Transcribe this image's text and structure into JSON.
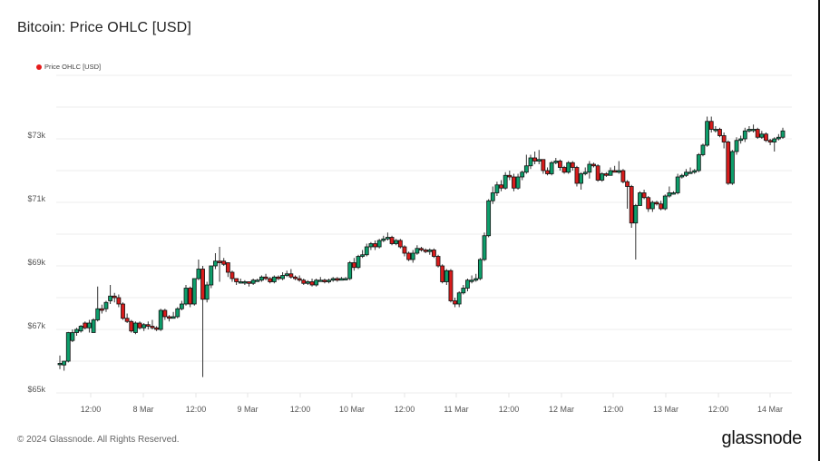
{
  "header": {
    "title": "Bitcoin: Price OHLC [USD]"
  },
  "legend": {
    "label": "Price OHLC [USD]",
    "color": "#e51b1b"
  },
  "footer": {
    "copyright": "© 2024 Glassnode. All Rights Reserved.",
    "logo": "glassnode"
  },
  "colors": {
    "up": "#0d9e6b",
    "down": "#d91c1c",
    "grid": "#eeeeee",
    "outline": "#111111"
  },
  "chart_data": {
    "type": "candlestick",
    "title": "Bitcoin: Price OHLC [USD]",
    "xlabel": "",
    "ylabel": "",
    "ylim": [
      65000,
      73800
    ],
    "grid": true,
    "legend_position": "top-left",
    "y_ticks": [
      "$65k",
      "$67k",
      "$69k",
      "$71k",
      "$73k"
    ],
    "y_tick_values": [
      65000,
      67000,
      69000,
      71000,
      73000
    ],
    "x_ticks": [
      "12:00",
      "8 Mar",
      "12:00",
      "9 Mar",
      "12:00",
      "10 Mar",
      "12:00",
      "11 Mar",
      "12:00",
      "12 Mar",
      "12:00",
      "13 Mar",
      "12:00",
      "14 Mar"
    ],
    "interval": "1h",
    "ohlc": [
      [
        65900,
        65930,
        65880,
        66180,
        65750
      ],
      [
        65880,
        66000,
        65870,
        66000,
        65700
      ],
      [
        66000,
        66900,
        66000,
        66920,
        65960
      ],
      [
        66650,
        66900,
        66650,
        67000,
        66600
      ],
      [
        66900,
        67000,
        66850,
        67050,
        66800
      ],
      [
        66950,
        67100,
        66950,
        67140,
        66900
      ],
      [
        67200,
        67050,
        67050,
        67250,
        67000
      ],
      [
        67050,
        67200,
        66900,
        67300,
        66950
      ],
      [
        66900,
        67300,
        66900,
        67350,
        66900
      ],
      [
        67300,
        67650,
        67300,
        68350,
        67250
      ],
      [
        67650,
        67600,
        67600,
        67780,
        67500
      ],
      [
        67650,
        67850,
        67600,
        67900,
        67550
      ],
      [
        67900,
        68050,
        67850,
        68400,
        67800
      ],
      [
        68050,
        68000,
        68000,
        68150,
        67850
      ],
      [
        68000,
        67800,
        67750,
        68100,
        67700
      ],
      [
        67800,
        67350,
        67350,
        67850,
        67300
      ],
      [
        67350,
        67250,
        67250,
        67500,
        67200
      ],
      [
        67250,
        66950,
        66900,
        67300,
        66900
      ],
      [
        66900,
        67200,
        66900,
        67250,
        66850
      ],
      [
        67200,
        67050,
        67050,
        67250,
        67000
      ],
      [
        67050,
        67150,
        67000,
        67200,
        66950
      ],
      [
        67150,
        67100,
        67050,
        67250,
        67000
      ],
      [
        67100,
        67050,
        67000,
        67300,
        67000
      ],
      [
        67050,
        67000,
        66950,
        67100,
        66950
      ],
      [
        67000,
        67600,
        67000,
        67650,
        66950
      ],
      [
        67600,
        67400,
        67350,
        67650,
        67300
      ],
      [
        67400,
        67350,
        67300,
        67450,
        67250
      ],
      [
        67350,
        67400,
        67350,
        67550,
        67350
      ],
      [
        67400,
        67650,
        67400,
        67700,
        67350
      ],
      [
        67650,
        67800,
        67600,
        67900,
        67600
      ],
      [
        67800,
        68300,
        67800,
        68400,
        67750
      ],
      [
        68300,
        67800,
        67750,
        68350,
        67700
      ],
      [
        67800,
        68600,
        67800,
        68600,
        67750
      ],
      [
        68600,
        68900,
        68600,
        69200,
        68550
      ],
      [
        68900,
        67950,
        67900,
        69000,
        65500
      ],
      [
        67950,
        68400,
        67900,
        68500,
        67850
      ],
      [
        68400,
        69000,
        68400,
        69000,
        68300
      ],
      [
        69000,
        69150,
        68950,
        69400,
        68900
      ],
      [
        69150,
        69100,
        69000,
        69600,
        68500
      ],
      [
        69150,
        69050,
        69000,
        69250,
        69000
      ],
      [
        69100,
        68800,
        68700,
        69100,
        68650
      ],
      [
        68800,
        68600,
        68500,
        68850,
        68500
      ],
      [
        68600,
        68500,
        68450,
        68600,
        68400
      ],
      [
        68500,
        68500,
        68450,
        68600,
        68450
      ],
      [
        68500,
        68500,
        68400,
        68550,
        68400
      ],
      [
        68500,
        68450,
        68400,
        68500,
        68350
      ],
      [
        68450,
        68550,
        68400,
        68600,
        68400
      ],
      [
        68550,
        68550,
        68500,
        68600,
        68500
      ],
      [
        68550,
        68650,
        68500,
        68700,
        68500
      ],
      [
        68650,
        68600,
        68550,
        68750,
        68550
      ],
      [
        68600,
        68500,
        68450,
        68650,
        68450
      ],
      [
        68500,
        68650,
        68500,
        68700,
        68450
      ],
      [
        68650,
        68600,
        68550,
        68700,
        68550
      ],
      [
        68600,
        68700,
        68550,
        68800,
        68550
      ],
      [
        68700,
        68750,
        68650,
        68850,
        68650
      ],
      [
        68750,
        68650,
        68600,
        68900,
        68600
      ],
      [
        68650,
        68600,
        68550,
        68700,
        68550
      ],
      [
        68600,
        68550,
        68500,
        68700,
        68500
      ],
      [
        68550,
        68450,
        68400,
        68600,
        68400
      ],
      [
        68450,
        68500,
        68400,
        68550,
        68400
      ],
      [
        68500,
        68400,
        68400,
        68600,
        68350
      ],
      [
        68400,
        68550,
        68400,
        68600,
        68350
      ],
      [
        68550,
        68550,
        68500,
        68650,
        68500
      ],
      [
        68550,
        68500,
        68500,
        68600,
        68450
      ],
      [
        68500,
        68550,
        68500,
        68600,
        68450
      ],
      [
        68550,
        68600,
        68500,
        68650,
        68500
      ],
      [
        68600,
        68550,
        68550,
        68650,
        68500
      ],
      [
        68550,
        68600,
        68550,
        68650,
        68550
      ],
      [
        68600,
        68600,
        68550,
        68650,
        68550
      ],
      [
        68600,
        69100,
        68600,
        69150,
        68550
      ],
      [
        69100,
        68950,
        68900,
        69250,
        68850
      ],
      [
        68950,
        69300,
        68900,
        69350,
        68900
      ],
      [
        69300,
        69350,
        69250,
        69500,
        69250
      ],
      [
        69350,
        69600,
        69300,
        69700,
        69300
      ],
      [
        69600,
        69700,
        69550,
        69750,
        69500
      ],
      [
        69700,
        69600,
        69550,
        69800,
        69500
      ],
      [
        69600,
        69800,
        69550,
        69850,
        69550
      ],
      [
        69800,
        69850,
        69750,
        69950,
        69750
      ],
      [
        69850,
        69900,
        69800,
        70050,
        69800
      ],
      [
        69900,
        69700,
        69650,
        69950,
        69650
      ],
      [
        69700,
        69800,
        69650,
        69850,
        69650
      ],
      [
        69800,
        69600,
        69550,
        69850,
        69550
      ],
      [
        69600,
        69400,
        69350,
        69650,
        69300
      ],
      [
        69400,
        69200,
        69150,
        69450,
        69150
      ],
      [
        69200,
        69400,
        69150,
        69500,
        69100
      ],
      [
        69400,
        69550,
        69350,
        69650,
        69350
      ],
      [
        69550,
        69500,
        69450,
        69600,
        69450
      ],
      [
        69500,
        69450,
        69400,
        69550,
        69400
      ],
      [
        69450,
        69500,
        69400,
        69550,
        69350
      ],
      [
        69500,
        69300,
        69250,
        69550,
        69250
      ],
      [
        69300,
        69000,
        68950,
        69350,
        68950
      ],
      [
        69000,
        68500,
        68450,
        69050,
        68450
      ],
      [
        68500,
        68850,
        68450,
        68900,
        68400
      ],
      [
        68850,
        67900,
        67850,
        68900,
        67850
      ],
      [
        67900,
        67800,
        67700,
        68000,
        67700
      ],
      [
        67800,
        68150,
        67750,
        68200,
        67700
      ],
      [
        68150,
        68300,
        68100,
        68400,
        68100
      ],
      [
        68300,
        68550,
        68250,
        68600,
        68200
      ],
      [
        68550,
        68550,
        68500,
        68700,
        68450
      ],
      [
        68550,
        68600,
        68500,
        68750,
        68500
      ],
      [
        68600,
        69200,
        68600,
        69250,
        68550
      ],
      [
        69200,
        69950,
        69200,
        70050,
        69150
      ],
      [
        69950,
        71050,
        69950,
        71100,
        69900
      ],
      [
        71050,
        71300,
        71000,
        71500,
        70950
      ],
      [
        71300,
        71550,
        71250,
        71650,
        71200
      ],
      [
        71550,
        71450,
        71400,
        71700,
        71350
      ],
      [
        71450,
        71850,
        71450,
        71950,
        71400
      ],
      [
        71850,
        71800,
        71700,
        72000,
        71700
      ],
      [
        71800,
        71450,
        71400,
        71900,
        71350
      ],
      [
        71450,
        71800,
        71400,
        71900,
        71400
      ],
      [
        71800,
        71950,
        71750,
        72000,
        71700
      ],
      [
        71950,
        72150,
        71950,
        72500,
        71900
      ],
      [
        72150,
        72400,
        72100,
        72500,
        72050
      ],
      [
        72400,
        72300,
        72250,
        72600,
        72200
      ],
      [
        72300,
        72350,
        72250,
        72650,
        72200
      ],
      [
        72350,
        72000,
        71950,
        72350,
        71900
      ],
      [
        72000,
        71900,
        71850,
        72100,
        71850
      ],
      [
        71900,
        72250,
        71900,
        72300,
        71850
      ],
      [
        72250,
        72300,
        72200,
        72400,
        72200
      ],
      [
        72300,
        72100,
        72000,
        72350,
        72000
      ],
      [
        72100,
        71950,
        71900,
        72150,
        71900
      ],
      [
        71950,
        72250,
        71950,
        72300,
        71900
      ],
      [
        72250,
        72100,
        72050,
        72300,
        72000
      ],
      [
        72100,
        71600,
        71550,
        72150,
        71500
      ],
      [
        71600,
        71900,
        71550,
        71950,
        71400
      ],
      [
        71900,
        71950,
        71850,
        72100,
        71850
      ],
      [
        71950,
        72200,
        71950,
        72300,
        71750
      ],
      [
        72200,
        72150,
        72100,
        72250,
        72100
      ],
      [
        72150,
        71700,
        71700,
        72200,
        71650
      ],
      [
        71700,
        71900,
        71650,
        71950,
        71650
      ],
      [
        71900,
        71850,
        71800,
        71950,
        71800
      ],
      [
        71850,
        72000,
        71850,
        72100,
        71850
      ],
      [
        72000,
        71950,
        71950,
        72150,
        71950
      ],
      [
        71950,
        72000,
        71900,
        72300,
        71900
      ],
      [
        72000,
        71650,
        71600,
        72050,
        71600
      ],
      [
        71650,
        71500,
        71450,
        71700,
        70800
      ],
      [
        71500,
        70350,
        70350,
        71550,
        70200
      ],
      [
        70350,
        70900,
        69800,
        70950,
        69200
      ],
      [
        70900,
        71300,
        70900,
        71350,
        70900
      ],
      [
        71300,
        71150,
        71100,
        71400,
        71100
      ],
      [
        71150,
        70800,
        70750,
        71200,
        70700
      ],
      [
        70800,
        71000,
        70750,
        71050,
        70700
      ],
      [
        71000,
        70950,
        70900,
        71050,
        70900
      ],
      [
        70950,
        70800,
        70750,
        71050,
        70750
      ],
      [
        70800,
        71200,
        70750,
        71250,
        70750
      ],
      [
        71200,
        71300,
        71200,
        71500,
        71150
      ],
      [
        71300,
        71300,
        71250,
        71350,
        71250
      ],
      [
        71300,
        71800,
        71300,
        71900,
        71250
      ],
      [
        71800,
        71850,
        71750,
        71900,
        71750
      ],
      [
        71850,
        71950,
        71850,
        72050,
        71800
      ],
      [
        71950,
        71950,
        71900,
        72100,
        71900
      ],
      [
        71950,
        72000,
        71900,
        72050,
        71900
      ],
      [
        72000,
        72500,
        72000,
        72550,
        71950
      ],
      [
        72500,
        72800,
        72500,
        72850,
        72450
      ],
      [
        72800,
        73550,
        72800,
        73700,
        72750
      ],
      [
        73550,
        73300,
        73250,
        73700,
        73200
      ],
      [
        73300,
        73300,
        73250,
        73400,
        73200
      ],
      [
        73300,
        73100,
        73050,
        73350,
        73050
      ],
      [
        73100,
        72900,
        72850,
        73200,
        72700
      ],
      [
        72900,
        71600,
        71550,
        72950,
        71550
      ],
      [
        71600,
        72600,
        71550,
        72650,
        71550
      ],
      [
        72600,
        72950,
        72550,
        73050,
        72500
      ],
      [
        72950,
        73000,
        72900,
        73100,
        72850
      ],
      [
        73000,
        73250,
        72950,
        73350,
        72900
      ],
      [
        73250,
        73300,
        73250,
        73400,
        73200
      ],
      [
        73300,
        73300,
        73250,
        73450,
        73200
      ],
      [
        73300,
        73050,
        73000,
        73350,
        73000
      ],
      [
        73050,
        73150,
        73000,
        73250,
        73000
      ],
      [
        73150,
        72950,
        72900,
        73200,
        72900
      ],
      [
        72950,
        72900,
        72800,
        73000,
        72800
      ],
      [
        72900,
        73000,
        72650,
        73050,
        72600
      ],
      [
        73000,
        73050,
        72950,
        73150,
        72950
      ],
      [
        73050,
        73250,
        73050,
        73350,
        73000
      ]
    ]
  }
}
